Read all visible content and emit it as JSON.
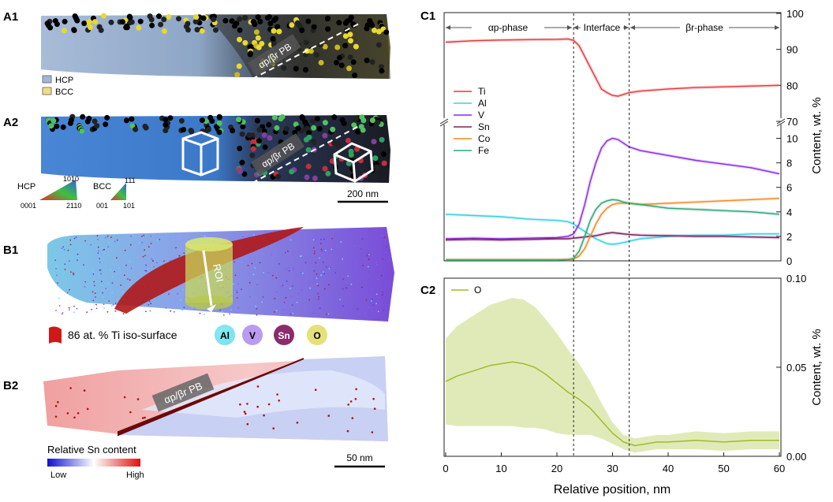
{
  "panels": {
    "A1": {
      "label": "A1",
      "boundary": "αp/βr PB",
      "legend": [
        {
          "label": "HCP",
          "color": "#9fb7d6"
        },
        {
          "label": "BCC",
          "color": "#f2dc8a"
        }
      ]
    },
    "A2": {
      "label": "A2",
      "boundary": "αp/βr PB",
      "hcp_key": {
        "name": "HCP",
        "top": "1010",
        "left": "0001",
        "right": "2110"
      },
      "bcc_key": {
        "name": "BCC",
        "top": "111",
        "left": "001",
        "right": "101"
      },
      "scale_bar": "200 nm"
    },
    "B1": {
      "label": "B1",
      "roi": "ROI",
      "iso_surface": "86 at. % Ti iso-surface",
      "elements": [
        {
          "label": "Al",
          "color": "#6fe6f2"
        },
        {
          "label": "V",
          "color": "#b89cf0"
        },
        {
          "label": "Sn",
          "color": "#8a2c6e"
        },
        {
          "label": "O",
          "color": "#e6e07a"
        }
      ]
    },
    "B2": {
      "label": "B2",
      "boundary": "αp/βr PB",
      "colorbar_title": "Relative Sn content",
      "low": "Low",
      "high": "High",
      "scale_bar": "50 nm"
    },
    "C1": {
      "label": "C1",
      "phase_labels": [
        "αp-phase",
        "Interface",
        "βr-phase"
      ],
      "ylabel": "Content, wt. %"
    },
    "C2": {
      "label": "C2",
      "ylabel": "Content, wt. %",
      "xlabel": "Relative position, nm"
    }
  },
  "chart_data": [
    {
      "type": "line",
      "title": "C1",
      "xlabel": "",
      "ylabel": "Content, wt. %",
      "xlim": [
        0,
        60
      ],
      "ylim_upper": [
        70,
        100
      ],
      "ylim_lower": [
        0,
        11
      ],
      "upper_ticks": [
        70,
        80,
        90,
        100
      ],
      "lower_ticks": [
        0,
        2,
        4,
        6,
        8,
        10
      ],
      "x": [
        0,
        5,
        10,
        15,
        20,
        22,
        23,
        24,
        25,
        26,
        27,
        28,
        29,
        30,
        31,
        32,
        33,
        35,
        40,
        45,
        50,
        55,
        60
      ],
      "series": [
        {
          "name": "Ti",
          "color": "#e8383a",
          "values": [
            92.0,
            92.4,
            92.6,
            92.7,
            92.8,
            92.9,
            92.5,
            91.0,
            88.0,
            85.0,
            82.0,
            79.0,
            78.0,
            77.2,
            77.0,
            77.5,
            78.0,
            78.4,
            79.0,
            79.4,
            79.6,
            79.8,
            80.0
          ]
        },
        {
          "name": "Al",
          "color": "#35d0e8",
          "values": [
            3.8,
            3.7,
            3.6,
            3.4,
            3.3,
            3.2,
            3.0,
            2.7,
            2.4,
            2.1,
            1.8,
            1.6,
            1.4,
            1.35,
            1.4,
            1.5,
            1.6,
            1.8,
            2.0,
            2.1,
            2.1,
            2.2,
            2.2
          ]
        },
        {
          "name": "V",
          "color": "#8a2be2",
          "values": [
            1.8,
            1.85,
            1.8,
            1.85,
            1.9,
            2.0,
            2.2,
            3.0,
            4.6,
            6.5,
            8.0,
            9.2,
            9.8,
            10.0,
            9.9,
            9.6,
            9.3,
            9.0,
            8.6,
            8.2,
            7.9,
            7.6,
            7.1
          ]
        },
        {
          "name": "Sn",
          "color": "#7a2060",
          "values": [
            1.7,
            1.75,
            1.7,
            1.75,
            1.8,
            1.8,
            1.85,
            1.9,
            1.95,
            2.0,
            2.05,
            2.15,
            2.25,
            2.3,
            2.25,
            2.2,
            2.15,
            2.1,
            2.05,
            2.0,
            2.0,
            1.95,
            1.9
          ]
        },
        {
          "name": "Co",
          "color": "#f08a24",
          "values": [
            0.1,
            0.1,
            0.1,
            0.1,
            0.1,
            0.1,
            0.15,
            0.4,
            1.0,
            2.0,
            3.0,
            3.8,
            4.3,
            4.6,
            4.7,
            4.7,
            4.7,
            4.6,
            4.7,
            4.8,
            4.9,
            5.0,
            5.1
          ]
        },
        {
          "name": "Fe",
          "color": "#2aa878",
          "values": [
            0.05,
            0.05,
            0.05,
            0.05,
            0.05,
            0.1,
            0.2,
            0.8,
            2.0,
            3.3,
            4.2,
            4.7,
            4.9,
            5.0,
            4.95,
            4.8,
            4.7,
            4.6,
            4.3,
            4.2,
            4.1,
            4.0,
            3.8
          ]
        }
      ]
    },
    {
      "type": "line",
      "title": "C2",
      "xlabel": "Relative position, nm",
      "ylabel": "Content, wt. %",
      "xlim": [
        0,
        60
      ],
      "ylim": [
        0,
        0.1
      ],
      "x_ticks": [
        0,
        10,
        20,
        30,
        40,
        50,
        60
      ],
      "y_ticks": [
        0.0,
        0.05,
        0.1
      ],
      "y_tick_labels": [
        "0.00",
        "0.05",
        "0.10"
      ],
      "x": [
        0,
        2,
        4,
        6,
        8,
        10,
        12,
        14,
        16,
        18,
        20,
        22,
        24,
        26,
        28,
        30,
        32,
        34,
        36,
        38,
        40,
        45,
        50,
        55,
        60
      ],
      "series": [
        {
          "name": "O",
          "color": "#9cbc2c",
          "values": [
            0.042,
            0.045,
            0.047,
            0.049,
            0.051,
            0.052,
            0.053,
            0.052,
            0.05,
            0.046,
            0.041,
            0.036,
            0.032,
            0.027,
            0.02,
            0.013,
            0.008,
            0.006,
            0.007,
            0.008,
            0.008,
            0.009,
            0.008,
            0.009,
            0.009
          ],
          "band": [
            0.024,
            0.028,
            0.03,
            0.032,
            0.034,
            0.035,
            0.036,
            0.036,
            0.034,
            0.031,
            0.028,
            0.024,
            0.02,
            0.015,
            0.01,
            0.006,
            0.004,
            0.004,
            0.004,
            0.004,
            0.004,
            0.005,
            0.005,
            0.005,
            0.005
          ]
        }
      ],
      "vlines": [
        23,
        33
      ]
    }
  ]
}
